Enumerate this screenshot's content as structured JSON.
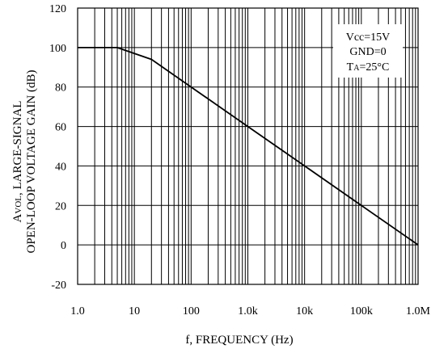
{
  "chart_data": {
    "type": "line",
    "title": "",
    "xlabel": "f, FREQUENCY (Hz)",
    "ylabel_line1_prefix": "A",
    "ylabel_line1_sub": "VOL",
    "ylabel_line1_rest": ", LARGE-SIGNAL",
    "ylabel_line2": "OPEN-LOOP VOLTAGE GAIN (dB)",
    "x_scale": "log",
    "xlim": [
      1,
      1000000
    ],
    "ylim": [
      -20,
      120
    ],
    "grid": true,
    "x_ticks": [
      {
        "value": 1,
        "label": "1.0"
      },
      {
        "value": 10,
        "label": "10"
      },
      {
        "value": 100,
        "label": "100"
      },
      {
        "value": 1000,
        "label": "1.0k"
      },
      {
        "value": 10000,
        "label": "10k"
      },
      {
        "value": 100000,
        "label": "100k"
      },
      {
        "value": 1000000,
        "label": "1.0M"
      }
    ],
    "y_ticks": [
      {
        "value": 120,
        "label": "120"
      },
      {
        "value": 100,
        "label": "100"
      },
      {
        "value": 80,
        "label": "80"
      },
      {
        "value": 60,
        "label": "60"
      },
      {
        "value": 40,
        "label": "40"
      },
      {
        "value": 20,
        "label": "20"
      },
      {
        "value": 0,
        "label": "0"
      },
      {
        "value": -20,
        "label": "-20"
      }
    ],
    "series": [
      {
        "x": [
          1,
          5,
          20,
          100,
          1000,
          10000,
          100000,
          1000000
        ],
        "y": [
          100,
          100,
          94,
          80,
          60,
          40,
          20,
          0
        ]
      }
    ],
    "annotation": {
      "lines": [
        {
          "text": "Vcc=15V"
        },
        {
          "text": "GND=0"
        },
        {
          "prefix": "T",
          "sub": "A",
          "rest": "=25°C"
        }
      ],
      "placement": "top-right"
    },
    "colors": {
      "line": "#000000",
      "grid": "#000000",
      "background": "#ffffff"
    }
  }
}
